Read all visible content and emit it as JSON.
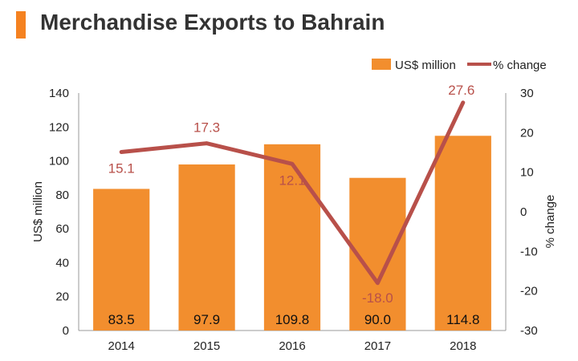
{
  "title": "Merchandise Exports to Bahrain",
  "colors": {
    "accent": "#f58220",
    "bar": "#f28e2e",
    "line": "#b8504a",
    "title": "#333333"
  },
  "chart_data": {
    "type": "bar",
    "categories": [
      "2014",
      "2015",
      "2016",
      "2017",
      "2018"
    ],
    "series": [
      {
        "name": "US$ million",
        "type": "bar",
        "axis": "left",
        "values": [
          83.5,
          97.9,
          109.8,
          90.0,
          114.8
        ],
        "labels": [
          "83.5",
          "97.9",
          "109.8",
          "90.0",
          "114.8"
        ]
      },
      {
        "name": "% change",
        "type": "line",
        "axis": "right",
        "values": [
          15.1,
          17.3,
          12.1,
          -18.0,
          27.6
        ],
        "labels": [
          "15.1",
          "17.3",
          "12.1",
          "-18.0",
          "27.6"
        ]
      }
    ],
    "ylabel": "US$ million",
    "y2label": "% change",
    "ylim": [
      0,
      140
    ],
    "y2lim": [
      -30,
      30
    ],
    "yticks": [
      "0",
      "20",
      "40",
      "60",
      "80",
      "100",
      "120",
      "140"
    ],
    "y2ticks": [
      "-30",
      "-20",
      "-10",
      "0",
      "10",
      "20",
      "30"
    ],
    "grid": false,
    "legend_position": "top-right"
  }
}
